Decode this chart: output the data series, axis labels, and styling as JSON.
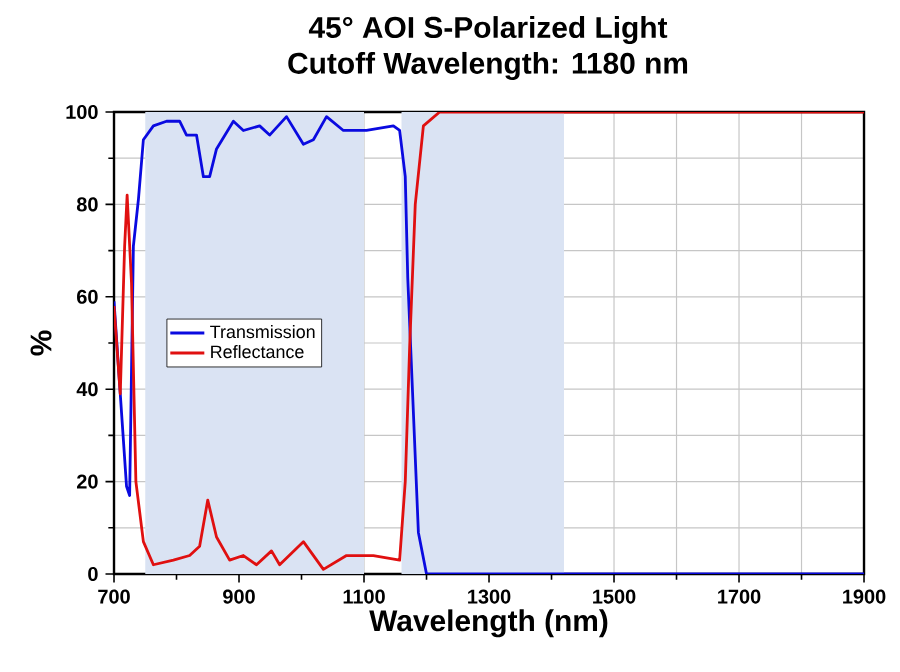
{
  "chart_data": {
    "type": "line",
    "title": "45° AOI S-Polarized Light",
    "subtitle": "Cutoff Wavelength: 1180 nm",
    "xlabel": "Wavelength (nm)",
    "ylabel": "%",
    "xlim": [
      700,
      1900
    ],
    "ylim": [
      0,
      100
    ],
    "xticks": [
      700,
      900,
      1100,
      1300,
      1500,
      1700,
      1900
    ],
    "yticks": [
      0,
      20,
      40,
      60,
      80,
      100
    ],
    "grid": true,
    "legend": "left",
    "bands": [
      {
        "axis": "x",
        "from": 750,
        "to": 1100,
        "color": "#dae3f3"
      },
      {
        "axis": "x",
        "from": 1160,
        "to": 1420,
        "color": "#dae3f3"
      }
    ],
    "series": [
      {
        "name": "Transmission",
        "color": "#0a0ae0",
        "x": [
          700,
          710,
          720,
          725,
          731,
          739,
          747,
          763,
          784,
          805,
          816,
          832,
          843,
          853,
          864,
          891,
          907,
          933,
          949,
          976,
          1003,
          1019,
          1040,
          1067,
          1104,
          1147,
          1157,
          1166,
          1170,
          1179,
          1187,
          1200,
          1500,
          1900
        ],
        "values": [
          59,
          39,
          19,
          17,
          71,
          81,
          94,
          97,
          98,
          98,
          95,
          95,
          86,
          86,
          92,
          98,
          96,
          97,
          95,
          99,
          93,
          94,
          99,
          96,
          96,
          97,
          96,
          86,
          64,
          35,
          9,
          0,
          0,
          0
        ]
      },
      {
        "name": "Reflectance",
        "color": "#e01010",
        "x": [
          700,
          710,
          717,
          721,
          728,
          735,
          747,
          763,
          795,
          821,
          837,
          850,
          864,
          885,
          907,
          928,
          952,
          965,
          1003,
          1035,
          1072,
          1115,
          1157,
          1166,
          1173,
          1182,
          1195,
          1221,
          1500,
          1900
        ],
        "values": [
          58,
          39,
          71,
          82,
          63,
          20,
          7,
          2,
          3,
          4,
          6,
          16,
          8,
          3,
          4,
          2,
          5,
          2,
          7,
          1,
          4,
          4,
          3,
          20,
          49,
          80,
          97,
          100,
          100,
          100
        ]
      }
    ]
  }
}
